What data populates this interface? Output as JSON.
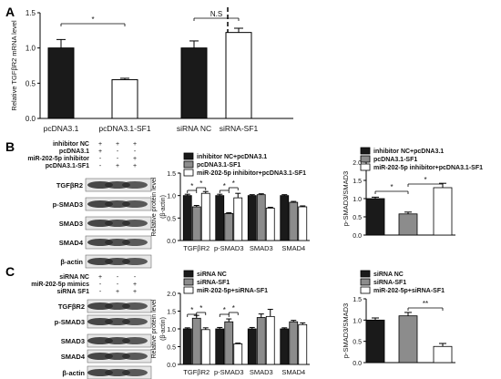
{
  "panel_labels": {
    "A": "A",
    "B": "B",
    "C": "C"
  },
  "colors": {
    "black": "#1a1a1a",
    "gray": "#8c8c8c",
    "white": "#ffffff",
    "blot_bg": "#e6e6e6",
    "band": "#2a2a2a"
  },
  "blots": {
    "B": {
      "conditions": [
        {
          "label": "inhibitor NC",
          "marks": [
            "+",
            "+",
            "+"
          ]
        },
        {
          "label": "pcDNA3.1",
          "marks": [
            "+",
            "-",
            "-"
          ]
        },
        {
          "label": "miR-202-5p inhibitor",
          "marks": [
            "-",
            "-",
            "+"
          ]
        },
        {
          "label": "pcDNA3.1-SF1",
          "marks": [
            "-",
            "+",
            "+"
          ]
        }
      ],
      "bands": [
        "TGFβR2",
        "p-SMAD3",
        "SMAD3",
        "SMAD4",
        "β-actin"
      ]
    },
    "C": {
      "conditions": [
        {
          "label": "siRNA NC",
          "marks": [
            "+",
            "-",
            "-"
          ]
        },
        {
          "label": "miR-202-5p mimics",
          "marks": [
            "-",
            "-",
            "+"
          ]
        },
        {
          "label": "siRNA SF1",
          "marks": [
            "-",
            "+",
            "+"
          ]
        }
      ],
      "bands": [
        "TGFβR2",
        "p-SMAD3",
        "SMAD3",
        "SMAD4",
        "β-actin"
      ]
    }
  },
  "chart_data": [
    {
      "id": "A",
      "type": "bar",
      "categories": [
        "pcDNA3.1",
        "pcDNA3.1-SF1",
        "siRNA NC",
        "siRNA-SF1"
      ],
      "values": [
        1.0,
        0.55,
        1.0,
        1.22
      ],
      "errors": [
        0.12,
        0.02,
        0.1,
        0.06
      ],
      "fills": [
        "black",
        "white",
        "black",
        "white"
      ],
      "ylabel": "Relative TGFβR2 mRNA level",
      "ylim": [
        0,
        1.5
      ],
      "yticks": [
        "0.0",
        "0.5",
        "1.0",
        "1.5"
      ],
      "significance": [
        {
          "label": "*",
          "from": 0,
          "to": 1
        },
        {
          "label": "N.S",
          "from": 2,
          "to": 3
        }
      ]
    },
    {
      "id": "B-protein",
      "type": "bar",
      "categories": [
        "TGFβR2",
        "p-SMAD3",
        "SMAD3",
        "SMAD4"
      ],
      "series": [
        {
          "name": "inhibitor NC+pcDNA3.1",
          "values": [
            1.0,
            1.0,
            1.0,
            1.0
          ],
          "errors": [
            0.03,
            0.03,
            0.02,
            0.02
          ]
        },
        {
          "name": "pcDNA3.1-SF1",
          "values": [
            0.75,
            0.6,
            1.02,
            0.85
          ],
          "errors": [
            0.03,
            0.02,
            0.02,
            0.02
          ]
        },
        {
          "name": "miR-202-5p inhibitor+pcDNA3.1-SF1",
          "values": [
            1.05,
            0.95,
            0.72,
            0.75
          ],
          "errors": [
            0.04,
            0.1,
            0.02,
            0.02
          ]
        }
      ],
      "ylabel": "Relative protein level (β-actin)",
      "ylim": [
        0,
        1.5
      ],
      "yticks": [
        "0.0",
        "0.5",
        "1.0",
        "1.5"
      ],
      "significance": [
        {
          "label": "*",
          "group": 0,
          "from": 0,
          "to": 1
        },
        {
          "label": "*",
          "group": 0,
          "from": 1,
          "to": 2
        },
        {
          "label": "*",
          "group": 1,
          "from": 0,
          "to": 1
        },
        {
          "label": "*",
          "group": 1,
          "from": 1,
          "to": 2
        }
      ]
    },
    {
      "id": "B-ratio",
      "type": "bar",
      "categories": [
        "inhibitor NC+pcDNA3.1",
        "pcDNA3.1-SF1",
        "miR-202-5p inhibitor+pcDNA3.1-SF1"
      ],
      "values": [
        1.0,
        0.58,
        1.3
      ],
      "errors": [
        0.04,
        0.05,
        0.12
      ],
      "fills": [
        "black",
        "gray",
        "white"
      ],
      "ylabel": "p-SMAD3/SMAD3",
      "ylim": [
        0,
        2.0
      ],
      "yticks": [
        "0.0",
        "0.5",
        "1.0",
        "1.5",
        "2.0"
      ],
      "significance": [
        {
          "label": "*",
          "from": 0,
          "to": 1
        },
        {
          "label": "*",
          "from": 1,
          "to": 2
        }
      ]
    },
    {
      "id": "C-protein",
      "type": "bar",
      "categories": [
        "TGFβR2",
        "p-SMAD3",
        "SMAD3",
        "SMAD4"
      ],
      "series": [
        {
          "name": "siRNA NC",
          "values": [
            1.0,
            1.0,
            1.0,
            1.0
          ],
          "errors": [
            0.03,
            0.04,
            0.04,
            0.03
          ]
        },
        {
          "name": "siRNA-SF1",
          "values": [
            1.3,
            1.2,
            1.32,
            1.2
          ],
          "errors": [
            0.08,
            0.08,
            0.1,
            0.04
          ]
        },
        {
          "name": "miR-202-5p+siRNA-SF1",
          "values": [
            0.98,
            0.58,
            1.35,
            1.12
          ],
          "errors": [
            0.05,
            0.02,
            0.2,
            0.05
          ]
        }
      ],
      "ylabel": "Relative protein level (β-actin)",
      "ylim": [
        0,
        2.0
      ],
      "yticks": [
        "0.0",
        "0.5",
        "1.0",
        "1.5",
        "2.0"
      ],
      "significance": [
        {
          "label": "*",
          "group": 0,
          "from": 0,
          "to": 1
        },
        {
          "label": "*",
          "group": 0,
          "from": 1,
          "to": 2
        },
        {
          "label": "*",
          "group": 1,
          "from": 0,
          "to": 1
        },
        {
          "label": "*",
          "group": 1,
          "from": 1,
          "to": 2
        }
      ]
    },
    {
      "id": "C-ratio",
      "type": "bar",
      "categories": [
        "siRNA NC",
        "siRNA-SF1",
        "miR-202-5p+siRNA-SF1"
      ],
      "values": [
        1.0,
        1.1,
        0.38
      ],
      "errors": [
        0.05,
        0.08,
        0.07
      ],
      "fills": [
        "black",
        "gray",
        "white"
      ],
      "ylabel": "p-SMAD3/SMAD3",
      "ylim": [
        0,
        1.5
      ],
      "yticks": [
        "0.0",
        "0.5",
        "1.0",
        "1.5"
      ],
      "significance": [
        {
          "label": "**",
          "from": 1,
          "to": 2
        }
      ]
    }
  ]
}
